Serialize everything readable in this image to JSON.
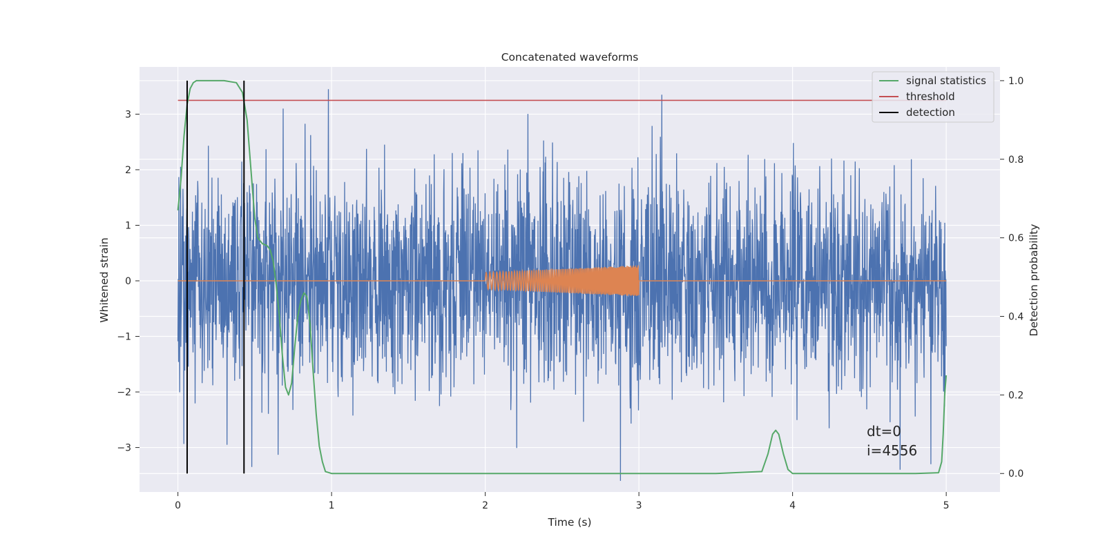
{
  "chart_data": {
    "type": "line",
    "title": "Concatenated waveforms",
    "xlabel": "Time (s)",
    "ylabel": "Whitened strain",
    "y2label": "Detection probability",
    "xlim": [
      -0.25,
      5.35
    ],
    "ylim": [
      -3.8,
      3.85
    ],
    "y2lim": [
      -0.047,
      1.035
    ],
    "x_ticks": [
      0,
      1,
      2,
      3,
      4,
      5
    ],
    "x_tick_labels": [
      "0",
      "1",
      "2",
      "3",
      "4",
      "5"
    ],
    "y_ticks": [
      3,
      2,
      1,
      0,
      -1,
      -2,
      -3
    ],
    "y_tick_labels": [
      "3",
      "2",
      "1",
      "0",
      "−1",
      "−2",
      "−3"
    ],
    "y2_ticks": [
      1.0,
      0.8,
      0.6,
      0.4,
      0.2,
      0.0
    ],
    "y2_tick_labels": [
      "1.0",
      "0.8",
      "0.6",
      "0.4",
      "0.2",
      "0.0"
    ],
    "grid": true,
    "legend_position": "top-right",
    "series": [
      {
        "name": "",
        "axis": "left",
        "kind": "noise",
        "color": "#4c72b0",
        "x_range": [
          0,
          5
        ],
        "typical_range": [
          -1.5,
          1.5
        ],
        "spikes": [
          {
            "x": 0.98,
            "y": 3.45
          },
          {
            "x": 3.15,
            "y": 3.35
          },
          {
            "x": 2.88,
            "y": -3.6
          },
          {
            "x": 0.48,
            "y": -3.35
          },
          {
            "x": 4.7,
            "y": -3.4
          },
          {
            "x": 0.32,
            "y": -2.95
          },
          {
            "x": 4.9,
            "y": -3.3
          }
        ]
      },
      {
        "name": "",
        "axis": "left",
        "kind": "chirp",
        "color": "#dd8452",
        "x_range": [
          0,
          5
        ],
        "chirp_start": 2.0,
        "chirp_end": 3.0,
        "amplitude_start": 0.15,
        "amplitude_end": 0.28
      },
      {
        "name": "signal statistics",
        "axis": "right",
        "color": "#55a868",
        "x": [
          0,
          0.02,
          0.04,
          0.06,
          0.08,
          0.1,
          0.12,
          0.14,
          0.2,
          0.3,
          0.38,
          0.42,
          0.45,
          0.48,
          0.5,
          0.52,
          0.55,
          0.58,
          0.6,
          0.62,
          0.64,
          0.66,
          0.68,
          0.7,
          0.72,
          0.74,
          0.76,
          0.78,
          0.8,
          0.82,
          0.84,
          0.86,
          0.88,
          0.9,
          0.92,
          0.94,
          0.96,
          1.0,
          1.5,
          2.0,
          2.5,
          3.0,
          3.5,
          3.8,
          3.84,
          3.87,
          3.89,
          3.91,
          3.94,
          3.97,
          4.0,
          4.5,
          4.8,
          4.95,
          4.97,
          4.98,
          4.99,
          5.0
        ],
        "y": [
          0.67,
          0.75,
          0.86,
          0.94,
          0.98,
          0.995,
          1.0,
          1.0,
          1.0,
          1.0,
          0.995,
          0.97,
          0.9,
          0.75,
          0.65,
          0.6,
          0.585,
          0.58,
          0.57,
          0.54,
          0.48,
          0.4,
          0.3,
          0.22,
          0.2,
          0.23,
          0.32,
          0.4,
          0.44,
          0.46,
          0.45,
          0.38,
          0.26,
          0.15,
          0.07,
          0.03,
          0.005,
          0.0,
          0.0,
          0.0,
          0.0,
          0.0,
          0.0,
          0.005,
          0.05,
          0.1,
          0.11,
          0.1,
          0.05,
          0.01,
          0.0,
          0.0,
          0.0,
          0.002,
          0.03,
          0.1,
          0.2,
          0.25
        ]
      },
      {
        "name": "threshold",
        "axis": "right",
        "color": "#c44e52",
        "x": [
          0,
          5
        ],
        "y": [
          0.95,
          0.95
        ]
      },
      {
        "name": "detection",
        "axis": "right",
        "color": "#000000",
        "x_positions": [
          0.06,
          0.43
        ],
        "y_range": [
          0,
          1.0
        ]
      }
    ],
    "annotations": [
      "dt=0",
      "i=4556"
    ]
  }
}
